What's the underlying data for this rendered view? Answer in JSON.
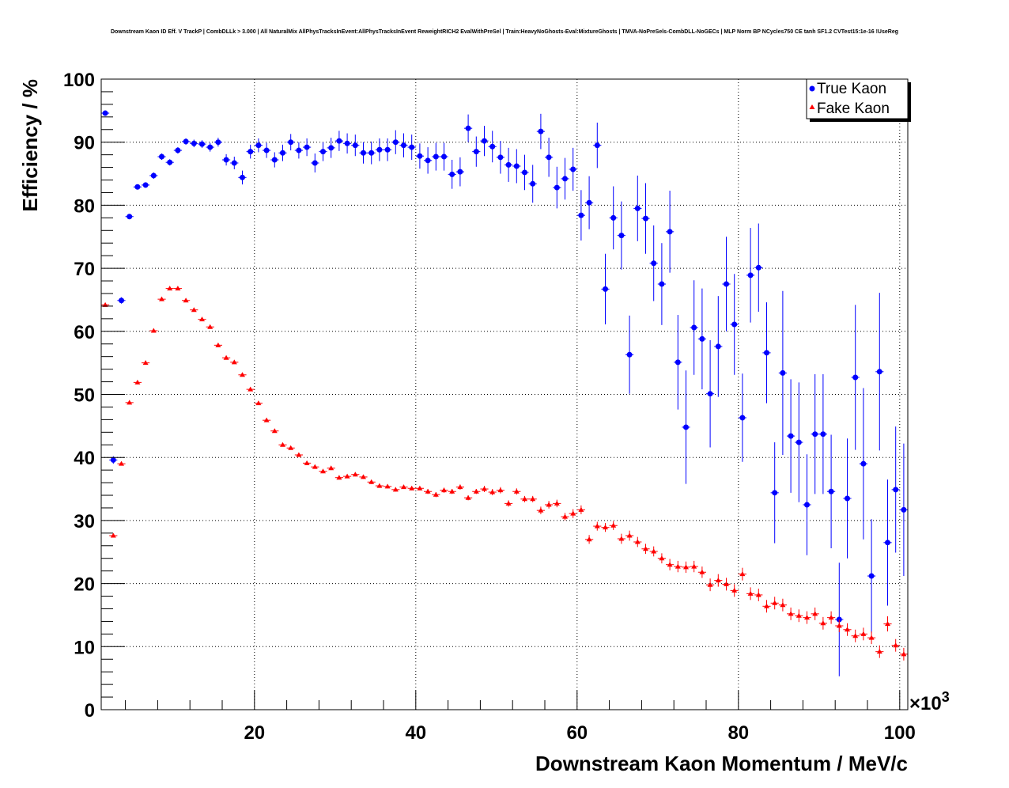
{
  "chart_data": {
    "type": "scatter",
    "title": "Downstream Kaon ID Eff. V TrackP | CombDLLk > 3.000 | All NaturalMix AllPhysTracksInEvent:AllPhysTracksInEvent ReweightRICH2 EvalWithPreSel | Train:HeavyNoGhosts-Eval:MixtureGhosts | TMVA-NoPreSels-CombDLL-NoGECs | MLP Norm BP NCycles750 CE tanh SF1.2 CVTest15:1e-16 !UseReg",
    "xlabel": "Downstream Kaon Momentum / MeV/c",
    "ylabel": "Efficiency / %",
    "x_multiplier": "×10",
    "x_multiplier_exp": "3",
    "xlim": [
      1,
      101
    ],
    "ylim": [
      0,
      100
    ],
    "xticks": [
      "20",
      "40",
      "60",
      "80",
      "100"
    ],
    "xtick_values": [
      20,
      40,
      60,
      80,
      100
    ],
    "yticks": [
      "0",
      "10",
      "20",
      "30",
      "40",
      "50",
      "60",
      "70",
      "80",
      "90",
      "100"
    ],
    "ytick_values": [
      0,
      10,
      20,
      30,
      40,
      50,
      60,
      70,
      80,
      90,
      100
    ],
    "grid": true,
    "legend_position": "top-right",
    "x_start": 1.5,
    "x_step": 1,
    "x_half_width": 0.5,
    "series": [
      {
        "name": "True Kaon",
        "color": "#0000ff",
        "marker": "circle",
        "values": [
          94.6,
          39.6,
          64.9,
          78.2,
          82.9,
          83.2,
          84.7,
          87.7,
          86.8,
          88.7,
          90.1,
          89.8,
          89.7,
          89.2,
          90.0,
          87.2,
          86.7,
          84.4,
          88.5,
          89.5,
          88.7,
          87.2,
          88.3,
          90.0,
          88.7,
          89.2,
          86.7,
          88.5,
          89.1,
          90.2,
          89.8,
          89.5,
          88.3,
          88.3,
          88.8,
          88.8,
          90.0,
          89.5,
          89.2,
          87.8,
          87.1,
          87.7,
          87.7,
          84.9,
          85.3,
          92.2,
          88.5,
          90.2,
          89.3,
          87.6,
          86.4,
          86.2,
          85.2,
          83.4,
          91.7,
          87.6,
          82.8,
          84.2,
          85.7,
          78.4,
          80.4,
          89.5,
          66.7,
          78.0,
          75.2,
          56.3,
          79.5,
          77.9,
          70.8,
          67.5,
          75.8,
          55.1,
          44.8,
          60.6,
          58.8,
          50.1,
          57.6,
          67.5,
          61.1,
          46.3,
          68.9,
          70.1,
          56.6,
          34.4,
          53.4,
          43.4,
          42.4,
          32.5,
          43.7,
          43.7,
          34.6,
          14.3,
          33.5,
          52.7,
          39.0,
          21.2,
          53.6,
          26.5,
          34.9,
          31.7
        ],
        "errors": [
          0.4,
          0.6,
          0.5,
          0.4,
          0.4,
          0.4,
          0.5,
          0.5,
          0.5,
          0.5,
          0.5,
          0.6,
          0.6,
          0.7,
          0.7,
          0.9,
          1.0,
          1.1,
          1.1,
          1.1,
          1.2,
          1.2,
          1.3,
          1.3,
          1.3,
          1.4,
          1.5,
          1.5,
          1.6,
          1.6,
          1.6,
          1.7,
          1.7,
          1.8,
          1.8,
          1.8,
          1.9,
          1.9,
          2.0,
          2.0,
          2.1,
          2.2,
          2.2,
          2.3,
          2.3,
          2.2,
          2.4,
          2.4,
          2.5,
          2.6,
          2.7,
          2.7,
          2.8,
          3.0,
          2.8,
          3.1,
          3.3,
          3.3,
          3.4,
          4.0,
          4.2,
          3.6,
          5.6,
          5.0,
          5.4,
          6.2,
          5.2,
          5.6,
          6.0,
          6.5,
          6.5,
          7.5,
          9.0,
          7.5,
          8.0,
          8.5,
          8.0,
          7.5,
          8.0,
          7.0,
          7.5,
          7.0,
          8.0,
          8.0,
          13.0,
          9.0,
          9.5,
          8.0,
          9.5,
          9.5,
          9.0,
          9.0,
          9.5,
          11.5,
          12.0,
          9.0,
          12.5,
          10.0,
          10.0,
          10.5
        ]
      },
      {
        "name": "Fake Kaon",
        "color": "#ff0000",
        "marker": "triangle",
        "values": [
          64.2,
          27.6,
          39.0,
          48.7,
          51.9,
          55.0,
          60.1,
          65.1,
          66.8,
          66.8,
          64.9,
          63.4,
          61.9,
          60.7,
          57.8,
          55.8,
          55.1,
          53.1,
          50.8,
          48.6,
          45.9,
          44.2,
          42.0,
          41.5,
          40.4,
          39.1,
          38.5,
          37.8,
          38.3,
          36.8,
          37.0,
          37.3,
          36.9,
          36.1,
          35.5,
          35.4,
          34.9,
          35.3,
          35.1,
          35.1,
          34.6,
          34.1,
          34.8,
          34.6,
          35.3,
          33.6,
          34.6,
          35.0,
          34.5,
          34.8,
          32.7,
          34.6,
          33.4,
          33.4,
          31.6,
          32.5,
          32.7,
          30.6,
          31.1,
          31.7,
          27.0,
          29.1,
          28.9,
          29.2,
          27.1,
          27.6,
          26.6,
          25.5,
          25.1,
          24.0,
          23.0,
          22.7,
          22.6,
          22.7,
          21.8,
          19.8,
          20.5,
          19.9,
          18.9,
          21.5,
          18.4,
          18.2,
          16.4,
          16.9,
          16.6,
          15.2,
          14.9,
          14.6,
          15.2,
          13.7,
          14.6,
          13.3,
          12.7,
          11.7,
          12.0,
          11.4,
          9.2,
          13.6,
          10.2,
          8.8
        ],
        "errors": [
          0.2,
          0.2,
          0.2,
          0.2,
          0.2,
          0.2,
          0.2,
          0.2,
          0.2,
          0.2,
          0.2,
          0.2,
          0.2,
          0.2,
          0.2,
          0.2,
          0.2,
          0.2,
          0.2,
          0.2,
          0.2,
          0.2,
          0.2,
          0.2,
          0.2,
          0.3,
          0.3,
          0.3,
          0.3,
          0.3,
          0.3,
          0.3,
          0.3,
          0.3,
          0.3,
          0.3,
          0.3,
          0.3,
          0.3,
          0.3,
          0.4,
          0.4,
          0.4,
          0.4,
          0.4,
          0.4,
          0.4,
          0.5,
          0.5,
          0.5,
          0.5,
          0.5,
          0.5,
          0.5,
          0.6,
          0.6,
          0.6,
          0.6,
          0.7,
          0.7,
          0.7,
          0.7,
          0.7,
          0.7,
          0.8,
          0.8,
          0.8,
          0.8,
          0.8,
          0.8,
          0.9,
          0.9,
          0.9,
          0.9,
          0.9,
          1.0,
          1.0,
          1.0,
          1.0,
          1.0,
          1.0,
          1.0,
          1.0,
          1.0,
          1.0,
          1.0,
          1.0,
          1.0,
          1.0,
          1.0,
          1.0,
          1.0,
          1.0,
          1.0,
          1.0,
          1.0,
          1.0,
          1.2,
          1.0,
          1.0
        ]
      }
    ]
  }
}
